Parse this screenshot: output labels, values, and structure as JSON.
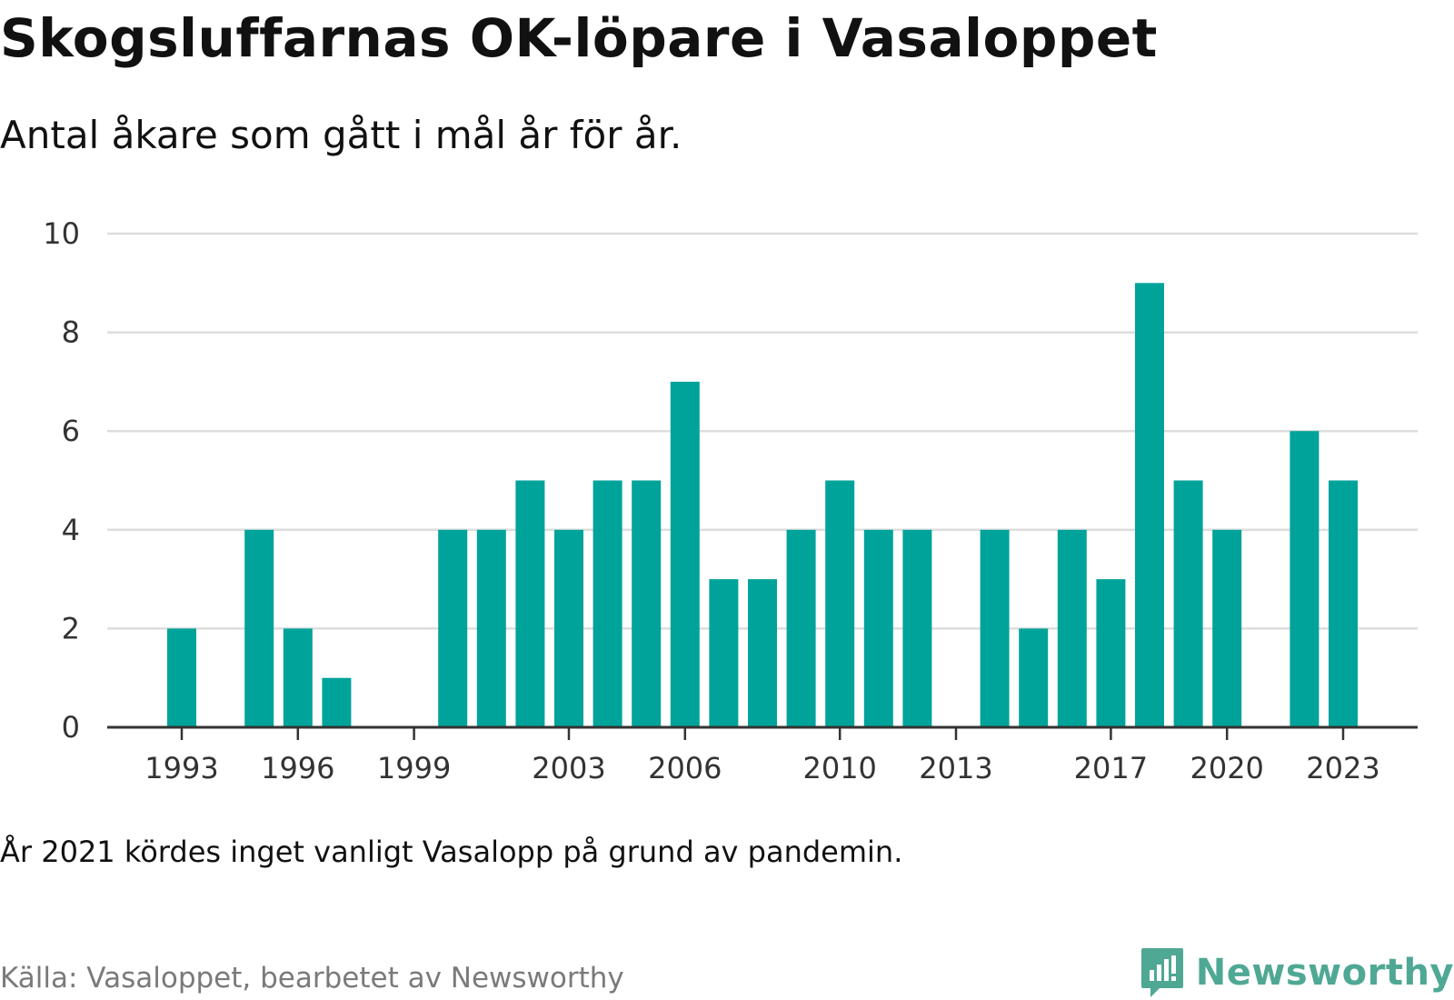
{
  "header": {
    "title": "Skogsluffarnas OK-löpare i Vasaloppet",
    "subtitle": "Antal åkare som gått i mål år för år."
  },
  "footer": {
    "note": "År 2021 kördes inget vanligt Vasalopp på grund av pandemin.",
    "source": "Källa: Vasaloppet, bearbetet av Newsworthy",
    "brand": "Newsworthy"
  },
  "colors": {
    "bar": "#00a39a",
    "grid": "#dddddd",
    "axis": "#333333",
    "brand": "#4fa894"
  },
  "chart_data": {
    "type": "bar",
    "categories": [
      1993,
      1994,
      1995,
      1996,
      1997,
      1998,
      1999,
      2000,
      2001,
      2002,
      2003,
      2004,
      2005,
      2006,
      2007,
      2008,
      2009,
      2010,
      2011,
      2012,
      2013,
      2014,
      2015,
      2016,
      2017,
      2018,
      2019,
      2020,
      2021,
      2022,
      2023
    ],
    "values": [
      2,
      0,
      4,
      2,
      1,
      0,
      0,
      4,
      4,
      5,
      4,
      5,
      5,
      7,
      3,
      3,
      4,
      5,
      4,
      4,
      0,
      4,
      2,
      4,
      3,
      9,
      5,
      4,
      0,
      6,
      5
    ],
    "x_tick_labels": [
      1993,
      1996,
      1999,
      2003,
      2006,
      2010,
      2013,
      2017,
      2020,
      2023
    ],
    "y_ticks": [
      0,
      2,
      4,
      6,
      8,
      10
    ],
    "ylim": [
      0,
      10
    ],
    "grid": true,
    "legend": false
  }
}
